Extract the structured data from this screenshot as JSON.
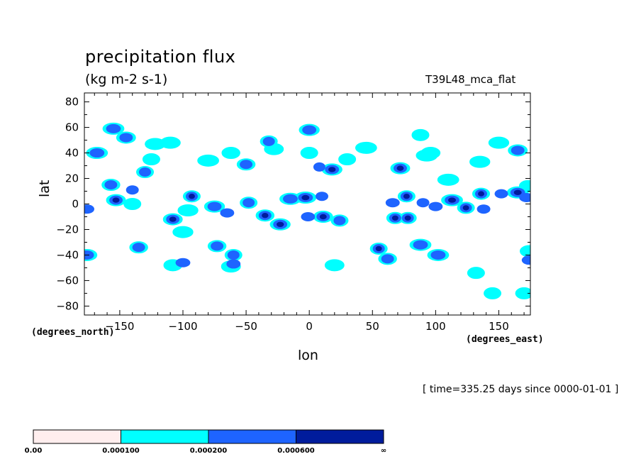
{
  "title": "precipitation flux",
  "units": "(kg m-2 s-1)",
  "model": "T39L48_mca_flat",
  "time_label": "[ time=335.25 days since 0000-01-01 ]",
  "x_units_label": "(degrees_east)",
  "y_units_label": "(degrees_north)",
  "chart_data": {
    "type": "heatmap",
    "xlabel": "lon",
    "ylabel": "lat",
    "xlim": [
      -178,
      175
    ],
    "ylim": [
      -87,
      87
    ],
    "x_ticks": [
      -150,
      -100,
      -50,
      0,
      50,
      100,
      150
    ],
    "x_tick_labels": [
      "−150",
      "−100",
      "−50",
      "0",
      "50",
      "100",
      "150"
    ],
    "y_ticks": [
      -80,
      -60,
      -40,
      -20,
      0,
      20,
      40,
      60,
      80
    ],
    "y_tick_labels": [
      "−80",
      "−60",
      "−40",
      "−20",
      "0",
      "20",
      "40",
      "60",
      "80"
    ],
    "grid": false,
    "levels": [
      0.0,
      0.0001,
      0.0002,
      0.0006
    ],
    "colorbar": {
      "labels": [
        "0.00",
        "0.000100",
        "0.000200",
        "0.000600",
        "∞"
      ],
      "colors": [
        "#ffeeee",
        "#00ffff",
        "#1e64ff",
        "#001c9c"
      ]
    },
    "features": [
      {
        "lon": -155,
        "lat": 59,
        "level": 1
      },
      {
        "lon": -155,
        "lat": 59,
        "level": 2
      },
      {
        "lon": -145,
        "lat": 52,
        "level": 1
      },
      {
        "lon": -145,
        "lat": 52,
        "level": 2
      },
      {
        "lon": -168,
        "lat": 40,
        "level": 1
      },
      {
        "lon": -168,
        "lat": 40,
        "level": 2
      },
      {
        "lon": -110,
        "lat": 48,
        "level": 1
      },
      {
        "lon": -122,
        "lat": 47,
        "level": 1
      },
      {
        "lon": -125,
        "lat": 35,
        "level": 1
      },
      {
        "lon": -130,
        "lat": 25,
        "level": 1
      },
      {
        "lon": -130,
        "lat": 25,
        "level": 2
      },
      {
        "lon": -157,
        "lat": 15,
        "level": 1
      },
      {
        "lon": -157,
        "lat": 15,
        "level": 2
      },
      {
        "lon": -153,
        "lat": 3,
        "level": 1
      },
      {
        "lon": -153,
        "lat": 3,
        "level": 2
      },
      {
        "lon": -153,
        "lat": 3,
        "level": 3
      },
      {
        "lon": -140,
        "lat": 0,
        "level": 1
      },
      {
        "lon": -140,
        "lat": 11,
        "level": 2
      },
      {
        "lon": -176,
        "lat": -4,
        "level": 2
      },
      {
        "lon": -93,
        "lat": 6,
        "level": 1
      },
      {
        "lon": -93,
        "lat": 6,
        "level": 2
      },
      {
        "lon": -93,
        "lat": 6,
        "level": 3
      },
      {
        "lon": -108,
        "lat": -12,
        "level": 1
      },
      {
        "lon": -108,
        "lat": -12,
        "level": 2
      },
      {
        "lon": -108,
        "lat": -12,
        "level": 3
      },
      {
        "lon": -96,
        "lat": -5,
        "level": 1
      },
      {
        "lon": -75,
        "lat": -2,
        "level": 1
      },
      {
        "lon": -75,
        "lat": -2,
        "level": 2
      },
      {
        "lon": -48,
        "lat": 1,
        "level": 1
      },
      {
        "lon": -48,
        "lat": 1,
        "level": 2
      },
      {
        "lon": -65,
        "lat": -7,
        "level": 2
      },
      {
        "lon": -35,
        "lat": -9,
        "level": 1
      },
      {
        "lon": -35,
        "lat": -9,
        "level": 2
      },
      {
        "lon": -35,
        "lat": -9,
        "level": 3
      },
      {
        "lon": -23,
        "lat": -16,
        "level": 1
      },
      {
        "lon": -23,
        "lat": -16,
        "level": 2
      },
      {
        "lon": -23,
        "lat": -16,
        "level": 3
      },
      {
        "lon": -15,
        "lat": 4,
        "level": 1
      },
      {
        "lon": -15,
        "lat": 4,
        "level": 2
      },
      {
        "lon": -3,
        "lat": 5,
        "level": 1
      },
      {
        "lon": -3,
        "lat": 5,
        "level": 2
      },
      {
        "lon": -3,
        "lat": 5,
        "level": 3
      },
      {
        "lon": 10,
        "lat": 6,
        "level": 2
      },
      {
        "lon": 11,
        "lat": -10,
        "level": 1
      },
      {
        "lon": 11,
        "lat": -10,
        "level": 2
      },
      {
        "lon": 11,
        "lat": -10,
        "level": 3
      },
      {
        "lon": -1,
        "lat": -10,
        "level": 2
      },
      {
        "lon": 24,
        "lat": -13,
        "level": 1
      },
      {
        "lon": 24,
        "lat": -13,
        "level": 2
      },
      {
        "lon": 0,
        "lat": 58,
        "level": 1
      },
      {
        "lon": 0,
        "lat": 58,
        "level": 2
      },
      {
        "lon": -32,
        "lat": 49,
        "level": 1
      },
      {
        "lon": -32,
        "lat": 49,
        "level": 2
      },
      {
        "lon": -50,
        "lat": 31,
        "level": 1
      },
      {
        "lon": -50,
        "lat": 31,
        "level": 2
      },
      {
        "lon": -80,
        "lat": 34,
        "level": 1
      },
      {
        "lon": 0,
        "lat": 40,
        "level": 1
      },
      {
        "lon": 18,
        "lat": 27,
        "level": 1
      },
      {
        "lon": 18,
        "lat": 27,
        "level": 2
      },
      {
        "lon": 18,
        "lat": 27,
        "level": 3
      },
      {
        "lon": 8,
        "lat": 29,
        "level": 2
      },
      {
        "lon": 30,
        "lat": 35,
        "level": 1
      },
      {
        "lon": 45,
        "lat": 44,
        "level": 1
      },
      {
        "lon": 72,
        "lat": 28,
        "level": 1
      },
      {
        "lon": 72,
        "lat": 28,
        "level": 2
      },
      {
        "lon": 72,
        "lat": 28,
        "level": 3
      },
      {
        "lon": 77,
        "lat": 6,
        "level": 1
      },
      {
        "lon": 77,
        "lat": 6,
        "level": 2
      },
      {
        "lon": 77,
        "lat": 6,
        "level": 3
      },
      {
        "lon": 66,
        "lat": 1,
        "level": 2
      },
      {
        "lon": 90,
        "lat": 1,
        "level": 2
      },
      {
        "lon": 68,
        "lat": -11,
        "level": 1
      },
      {
        "lon": 68,
        "lat": -11,
        "level": 2
      },
      {
        "lon": 68,
        "lat": -11,
        "level": 3
      },
      {
        "lon": 78,
        "lat": -11,
        "level": 1
      },
      {
        "lon": 78,
        "lat": -11,
        "level": 2
      },
      {
        "lon": 78,
        "lat": -11,
        "level": 3
      },
      {
        "lon": 55,
        "lat": -35,
        "level": 1
      },
      {
        "lon": 55,
        "lat": -35,
        "level": 2
      },
      {
        "lon": 55,
        "lat": -35,
        "level": 3
      },
      {
        "lon": 62,
        "lat": -43,
        "level": 1
      },
      {
        "lon": 62,
        "lat": -43,
        "level": 2
      },
      {
        "lon": 20,
        "lat": -48,
        "level": 1
      },
      {
        "lon": 88,
        "lat": -32,
        "level": 1
      },
      {
        "lon": 88,
        "lat": -32,
        "level": 2
      },
      {
        "lon": 102,
        "lat": -40,
        "level": 1
      },
      {
        "lon": 102,
        "lat": -40,
        "level": 2
      },
      {
        "lon": 113,
        "lat": 3,
        "level": 1
      },
      {
        "lon": 113,
        "lat": 3,
        "level": 2
      },
      {
        "lon": 113,
        "lat": 3,
        "level": 3
      },
      {
        "lon": 100,
        "lat": -2,
        "level": 2
      },
      {
        "lon": 124,
        "lat": -3,
        "level": 1
      },
      {
        "lon": 124,
        "lat": -3,
        "level": 2
      },
      {
        "lon": 124,
        "lat": -3,
        "level": 3
      },
      {
        "lon": 136,
        "lat": 8,
        "level": 1
      },
      {
        "lon": 136,
        "lat": 8,
        "level": 2
      },
      {
        "lon": 136,
        "lat": 8,
        "level": 3
      },
      {
        "lon": 138,
        "lat": -4,
        "level": 2
      },
      {
        "lon": 152,
        "lat": 8,
        "level": 2
      },
      {
        "lon": 165,
        "lat": 9,
        "level": 1
      },
      {
        "lon": 165,
        "lat": 9,
        "level": 2
      },
      {
        "lon": 165,
        "lat": 9,
        "level": 3
      },
      {
        "lon": 172,
        "lat": 5,
        "level": 2
      },
      {
        "lon": 173,
        "lat": 14,
        "level": 1
      },
      {
        "lon": 150,
        "lat": 48,
        "level": 1
      },
      {
        "lon": 165,
        "lat": 42,
        "level": 1
      },
      {
        "lon": 165,
        "lat": 42,
        "level": 2
      },
      {
        "lon": 135,
        "lat": 33,
        "level": 1
      },
      {
        "lon": 96,
        "lat": 40,
        "level": 1
      },
      {
        "lon": -135,
        "lat": -34,
        "level": 1
      },
      {
        "lon": -135,
        "lat": -34,
        "level": 2
      },
      {
        "lon": -108,
        "lat": -48,
        "level": 1
      },
      {
        "lon": -100,
        "lat": -46,
        "level": 2
      },
      {
        "lon": -73,
        "lat": -33,
        "level": 1
      },
      {
        "lon": -73,
        "lat": -33,
        "level": 2
      },
      {
        "lon": -60,
        "lat": -40,
        "level": 1
      },
      {
        "lon": -60,
        "lat": -40,
        "level": 2
      },
      {
        "lon": -62,
        "lat": -49,
        "level": 1
      },
      {
        "lon": -60,
        "lat": -47,
        "level": 2
      },
      {
        "lon": -176,
        "lat": -40,
        "level": 1
      },
      {
        "lon": -176,
        "lat": -40,
        "level": 2
      },
      {
        "lon": -100,
        "lat": -22,
        "level": 1
      },
      {
        "lon": 132,
        "lat": -54,
        "level": 1
      },
      {
        "lon": 145,
        "lat": -70,
        "level": 1
      },
      {
        "lon": 170,
        "lat": -70,
        "level": 1
      },
      {
        "lon": 174,
        "lat": -37,
        "level": 1
      },
      {
        "lon": 174,
        "lat": -44,
        "level": 2
      },
      {
        "lon": 110,
        "lat": 19,
        "level": 1
      },
      {
        "lon": -62,
        "lat": 40,
        "level": 1
      },
      {
        "lon": -28,
        "lat": 43,
        "level": 1
      },
      {
        "lon": 88,
        "lat": 54,
        "level": 1
      },
      {
        "lon": 93,
        "lat": 38,
        "level": 1
      }
    ]
  }
}
